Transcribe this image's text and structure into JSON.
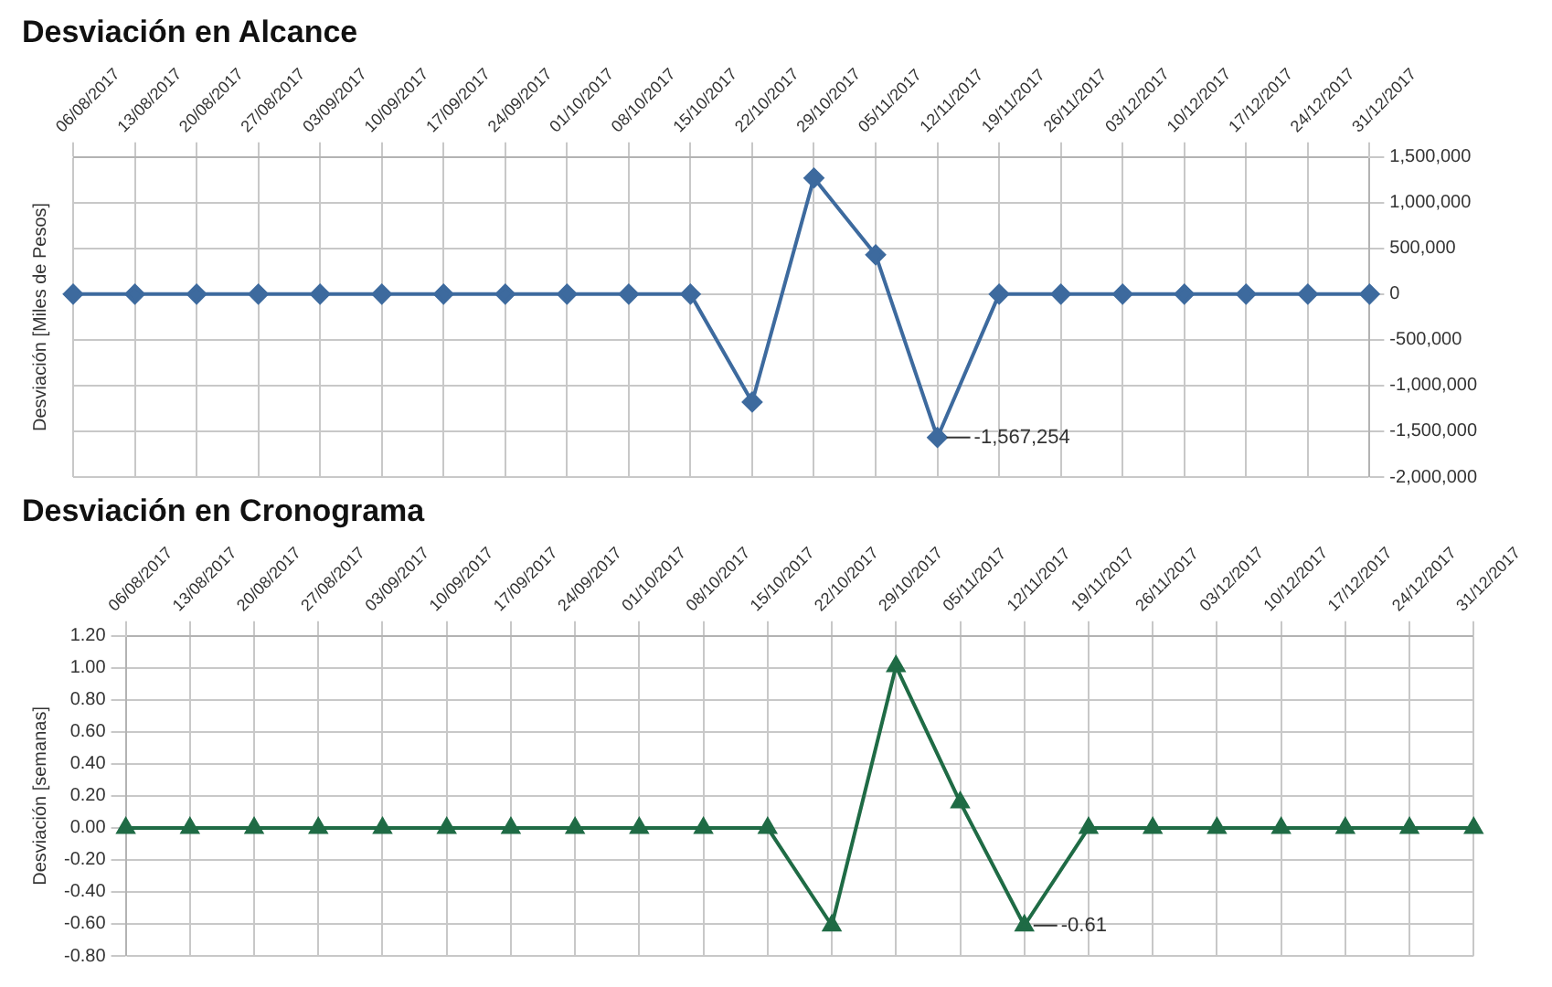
{
  "chart_data": [
    {
      "type": "line",
      "title": "Desviación en Alcance",
      "ylabel": "Desviación [Miles de Pesos]",
      "categories": [
        "06/08/2017",
        "13/08/2017",
        "20/08/2017",
        "27/08/2017",
        "03/09/2017",
        "10/09/2017",
        "17/09/2017",
        "24/09/2017",
        "01/10/2017",
        "08/10/2017",
        "15/10/2017",
        "22/10/2017",
        "29/10/2017",
        "05/11/2017",
        "12/11/2017",
        "19/11/2017",
        "26/11/2017",
        "03/12/2017",
        "10/12/2017",
        "17/12/2017",
        "24/12/2017",
        "31/12/2017"
      ],
      "series": [
        {
          "color": "#3d6a9e",
          "axis": "y2",
          "values": [
            0,
            0,
            0,
            0,
            0,
            0,
            0,
            0,
            0,
            0,
            0,
            -1180000,
            1270000,
            430000,
            -1567254,
            0,
            0,
            0,
            0,
            0,
            0,
            0
          ],
          "value_labels": [
            null,
            null,
            null,
            null,
            null,
            null,
            null,
            null,
            null,
            null,
            null,
            null,
            null,
            null,
            "-1,567,254",
            null,
            null,
            null,
            null,
            null,
            null,
            null
          ]
        }
      ],
      "y2lim": [
        -2000000,
        1500000
      ],
      "y2ticks": [
        {
          "value": -2000000,
          "label": "-2,000,000"
        },
        {
          "value": -1500000,
          "label": "-1,500,000"
        },
        {
          "value": -1000000,
          "label": "-1,000,000"
        },
        {
          "value": -500000,
          "label": "-500,000"
        },
        0,
        {
          "value": 500000,
          "label": "500,000"
        },
        {
          "value": 1000000,
          "label": "1,000,000"
        },
        {
          "value": 1500000,
          "label": "1,500,000"
        }
      ],
      "grid": true,
      "legend": false,
      "marker": "diamond",
      "line_style": "solid"
    },
    {
      "type": "line",
      "title": "Desviación en Cronograma",
      "ylabel": "Desviación [semanas]",
      "categories": [
        "06/08/2017",
        "13/08/2017",
        "20/08/2017",
        "27/08/2017",
        "03/09/2017",
        "10/09/2017",
        "17/09/2017",
        "24/09/2017",
        "01/10/2017",
        "08/10/2017",
        "15/10/2017",
        "22/10/2017",
        "29/10/2017",
        "05/11/2017",
        "12/11/2017",
        "19/11/2017",
        "26/11/2017",
        "03/12/2017",
        "10/12/2017",
        "17/12/2017",
        "24/12/2017",
        "31/12/2017"
      ],
      "series": [
        {
          "color": "#1f6b45",
          "values": [
            0,
            0,
            0,
            0,
            0,
            0,
            0,
            0,
            0,
            0,
            0,
            -0.61,
            1.01,
            0.16,
            -0.61,
            0,
            0,
            0,
            0,
            0,
            0,
            0
          ],
          "value_labels": [
            null,
            null,
            null,
            null,
            null,
            null,
            null,
            null,
            null,
            null,
            null,
            null,
            null,
            null,
            "-0.61",
            null,
            null,
            null,
            null,
            null,
            null,
            null
          ]
        }
      ],
      "ylim": [
        -0.8,
        1.2
      ],
      "yticks": [
        {
          "value": -0.8,
          "label": "-0.80"
        },
        {
          "value": -0.6,
          "label": "-0.60"
        },
        {
          "value": -0.4,
          "label": "-0.40"
        },
        {
          "value": -0.2,
          "label": "-0.20"
        },
        {
          "value": 0,
          "label": "0.00"
        },
        {
          "value": 0.2,
          "label": "0.20"
        },
        {
          "value": 0.4,
          "label": "0.40"
        },
        {
          "value": 0.6,
          "label": "0.60"
        },
        {
          "value": 0.8,
          "label": "0.80"
        },
        {
          "value": 1,
          "label": "1.00"
        },
        {
          "value": 1.2,
          "label": "1.20"
        }
      ],
      "grid": true,
      "legend": false,
      "marker": "triangle",
      "line_style": "solid"
    }
  ]
}
